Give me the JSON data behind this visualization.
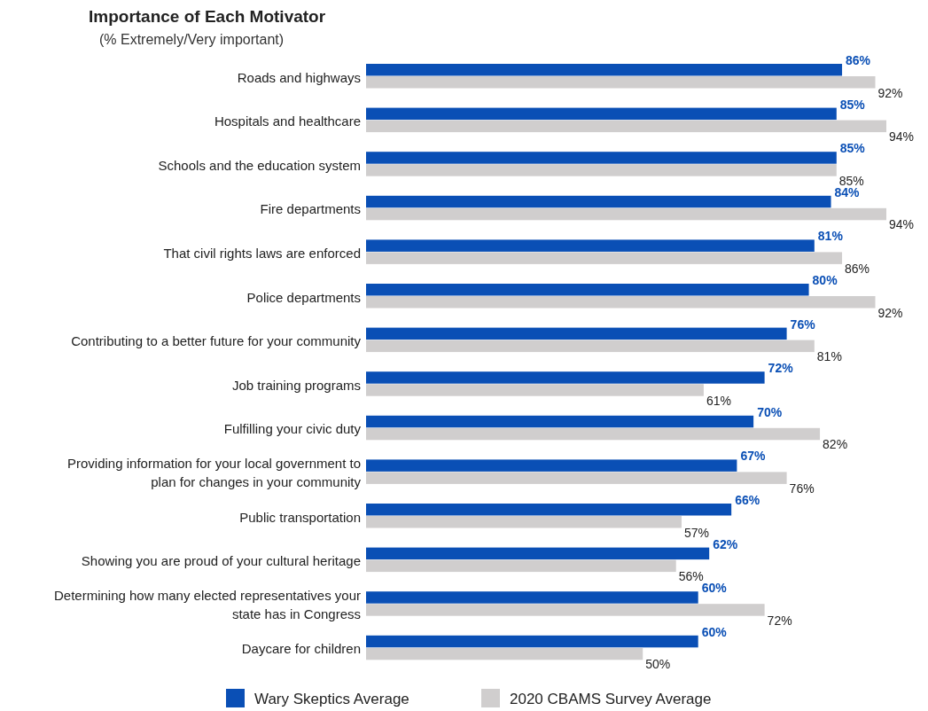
{
  "chart_data": {
    "type": "bar",
    "orientation": "horizontal",
    "title": "Importance of Each Motivator",
    "subtitle": "(% Extremely/Very important)",
    "categories": [
      "Roads and highways",
      "Hospitals and healthcare",
      "Schools and the education system",
      "Fire departments",
      "That civil rights laws are enforced",
      "Police departments",
      "Contributing to a better future for your community",
      "Job training programs",
      "Fulfilling your civic duty",
      "Providing information for your local government to plan for changes in your community",
      "Public transportation",
      "Showing you are proud of your cultural heritage",
      "Determining how many elected representatives your state has in Congress",
      "Daycare for children"
    ],
    "series": [
      {
        "name": "Wary Skeptics Average",
        "color": "#0a4fb5",
        "values": [
          86,
          85,
          85,
          84,
          81,
          80,
          76,
          72,
          70,
          67,
          66,
          62,
          60,
          60
        ],
        "value_labels": [
          "86%",
          "85%",
          "85%",
          "84%",
          "81%",
          "80%",
          "76%",
          "72%",
          "70%",
          "67%",
          "66%",
          "62%",
          "60%",
          "60%"
        ]
      },
      {
        "name": "2020 CBAMS Survey Average",
        "color": "#d0cece",
        "values": [
          92,
          94,
          85,
          94,
          86,
          92,
          81,
          61,
          82,
          76,
          57,
          56,
          72,
          50
        ],
        "value_labels": [
          "92%",
          "94%",
          "85%",
          "94%",
          "86%",
          "92%",
          "81%",
          "61%",
          "82%",
          "76%",
          "57%",
          "56%",
          "72%",
          "50%"
        ]
      }
    ],
    "legend": "bottom"
  }
}
